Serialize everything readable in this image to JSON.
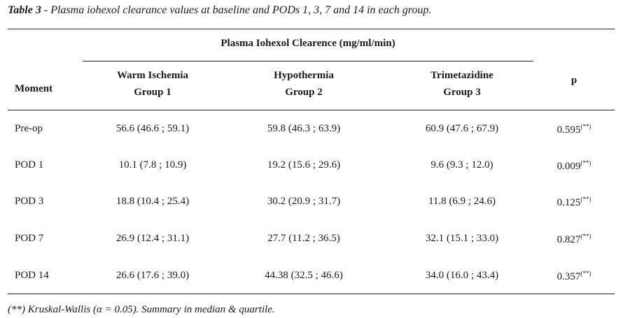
{
  "caption": {
    "label": "Table 3",
    "text": " - Plasma iohexol clearance values at baseline and PODs 1, 3, 7 and 14 in each group."
  },
  "header": {
    "span_title": "Plasma Iohexol Clearence (mg/ml/min)",
    "moment": "Moment",
    "group1_line1": "Warm Ischemia",
    "group1_line2": "Group 1",
    "group2_line1": "Hypothermia",
    "group2_line2": "Group 2",
    "group3_line1": "Trimetazidine",
    "group3_line2": "Group 3",
    "p": "p"
  },
  "rows": [
    {
      "moment": "Pre-op",
      "g1": "56.6 (46.6 ; 59.1)",
      "g2": "59.8 (46.3 ; 63.9)",
      "g3": "60.9 (47.6 ; 67.9)",
      "p": "0.595",
      "p_sup": "(**)"
    },
    {
      "moment": "POD 1",
      "g1": "10.1 (7.8 ; 10.9)",
      "g2": "19.2 (15.6 ; 29.6)",
      "g3": "9.6 (9.3 ; 12.0)",
      "p": "0.009",
      "p_sup": "(**)"
    },
    {
      "moment": "POD 3",
      "g1": "18.8 (10.4 ; 25.4)",
      "g2": "30.2 (20.9 ; 31.7)",
      "g3": "11.8 (6.9 ; 24.6)",
      "p": "0.125",
      "p_sup": "(**)"
    },
    {
      "moment": "POD 7",
      "g1": "26.9 (12.4 ; 31.1)",
      "g2": "27.7 (11.2 ; 36.5)",
      "g3": "32.1 (15.1 ; 33.0)",
      "p": "0.827",
      "p_sup": "(**)"
    },
    {
      "moment": "POD 14",
      "g1": "26.6 (17.6 ; 39.0)",
      "g2": "44.38 (32.5 ; 46.6)",
      "g3": "34.0 (16.0 ; 43.4)",
      "p": "0.357",
      "p_sup": "(**)"
    }
  ],
  "footnote": "(**) Kruskal-Wallis (α = 0.05). Summary in median & quartile."
}
